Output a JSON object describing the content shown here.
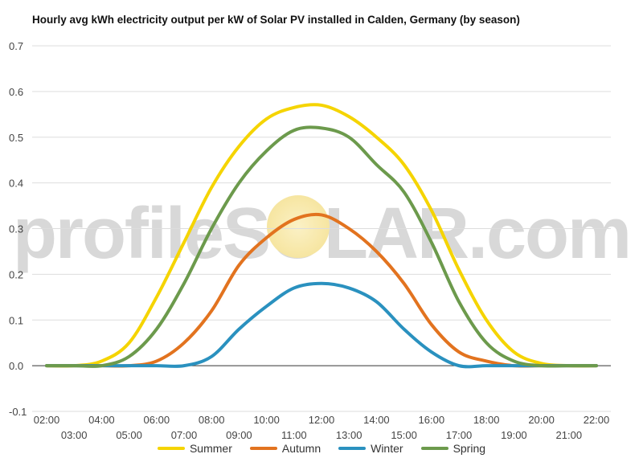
{
  "title": "Hourly avg kWh electricity output per kW of Solar PV installed in Calden, Germany (by season)",
  "watermark": "profileSOLAR.com",
  "chart_data": {
    "type": "line",
    "title": "Hourly avg kWh electricity output per kW of Solar PV installed in Calden, Germany (by season)",
    "xlabel": "",
    "ylabel": "",
    "ylim": [
      -0.1,
      0.7
    ],
    "yticks": [
      "-0.1",
      "0.0",
      "0.1",
      "0.2",
      "0.3",
      "0.4",
      "0.5",
      "0.6",
      "0.7"
    ],
    "grid": true,
    "legend_position": "bottom",
    "categories": [
      "02:00",
      "03:00",
      "04:00",
      "05:00",
      "06:00",
      "07:00",
      "08:00",
      "09:00",
      "10:00",
      "11:00",
      "12:00",
      "13:00",
      "14:00",
      "15:00",
      "16:00",
      "17:00",
      "18:00",
      "19:00",
      "20:00",
      "21:00",
      "22:00"
    ],
    "series": [
      {
        "name": "Summer",
        "color": "#f5d400",
        "values": [
          0,
          0,
          0.01,
          0.05,
          0.15,
          0.27,
          0.39,
          0.48,
          0.54,
          0.565,
          0.57,
          0.545,
          0.5,
          0.44,
          0.34,
          0.21,
          0.1,
          0.03,
          0.005,
          0,
          0
        ]
      },
      {
        "name": "Autumn",
        "color": "#e2731f",
        "values": [
          0,
          0,
          0,
          0,
          0.01,
          0.05,
          0.12,
          0.22,
          0.28,
          0.32,
          0.33,
          0.3,
          0.25,
          0.18,
          0.09,
          0.03,
          0.01,
          0,
          0,
          0,
          0
        ]
      },
      {
        "name": "Winter",
        "color": "#2a91bf",
        "values": [
          0,
          0,
          0,
          0,
          0,
          0,
          0.02,
          0.08,
          0.13,
          0.17,
          0.18,
          0.17,
          0.14,
          0.08,
          0.03,
          0,
          0,
          0,
          0,
          0,
          0
        ]
      },
      {
        "name": "Spring",
        "color": "#6c9a4c",
        "values": [
          0,
          0,
          0,
          0.02,
          0.08,
          0.18,
          0.3,
          0.4,
          0.47,
          0.515,
          0.52,
          0.5,
          0.44,
          0.38,
          0.27,
          0.14,
          0.05,
          0.01,
          0,
          0,
          0
        ]
      }
    ]
  }
}
